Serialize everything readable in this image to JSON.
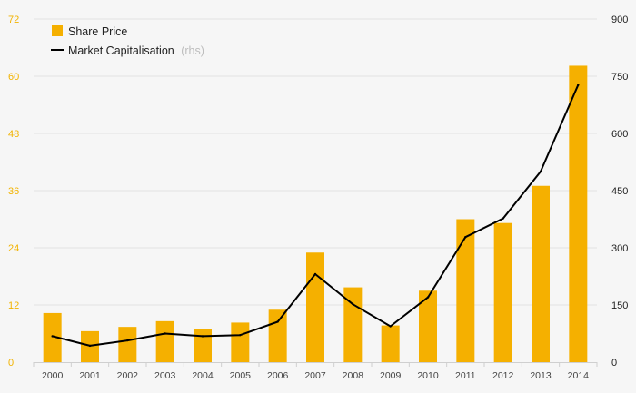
{
  "chart_data": {
    "type": "bar",
    "categories": [
      "2000",
      "2001",
      "2002",
      "2003",
      "2004",
      "2005",
      "2006",
      "2007",
      "2008",
      "2009",
      "2010",
      "2011",
      "2012",
      "2013",
      "2014"
    ],
    "series": [
      {
        "name": "Share Price",
        "type": "bar",
        "axis": "left",
        "values": [
          10.3,
          6.5,
          7.4,
          8.6,
          7.0,
          8.3,
          11.0,
          23.0,
          15.7,
          7.7,
          15.0,
          30.0,
          29.2,
          37.0,
          62.2
        ]
      },
      {
        "name": "Market Capitalisation",
        "name_note": "(rhs)",
        "type": "line",
        "axis": "right",
        "values": [
          68,
          43,
          57,
          75,
          68,
          71,
          106,
          231,
          152,
          94,
          170,
          328,
          377,
          500,
          727
        ]
      }
    ],
    "y_left": {
      "ylim": [
        0,
        72
      ],
      "ticks": [
        "0",
        "12",
        "24",
        "36",
        "48",
        "60",
        "72"
      ]
    },
    "y_right": {
      "ylim": [
        0,
        900
      ],
      "ticks": [
        "0",
        "150",
        "300",
        "450",
        "600",
        "750",
        "900"
      ]
    },
    "legend_position": "top-left",
    "grid": true,
    "colors": {
      "bar": "#f5b000",
      "line": "#000000",
      "left_tick": "#f2b300",
      "right_tick": "#222222",
      "grid": "#e2e2e2",
      "background": "#f6f6f6"
    }
  }
}
